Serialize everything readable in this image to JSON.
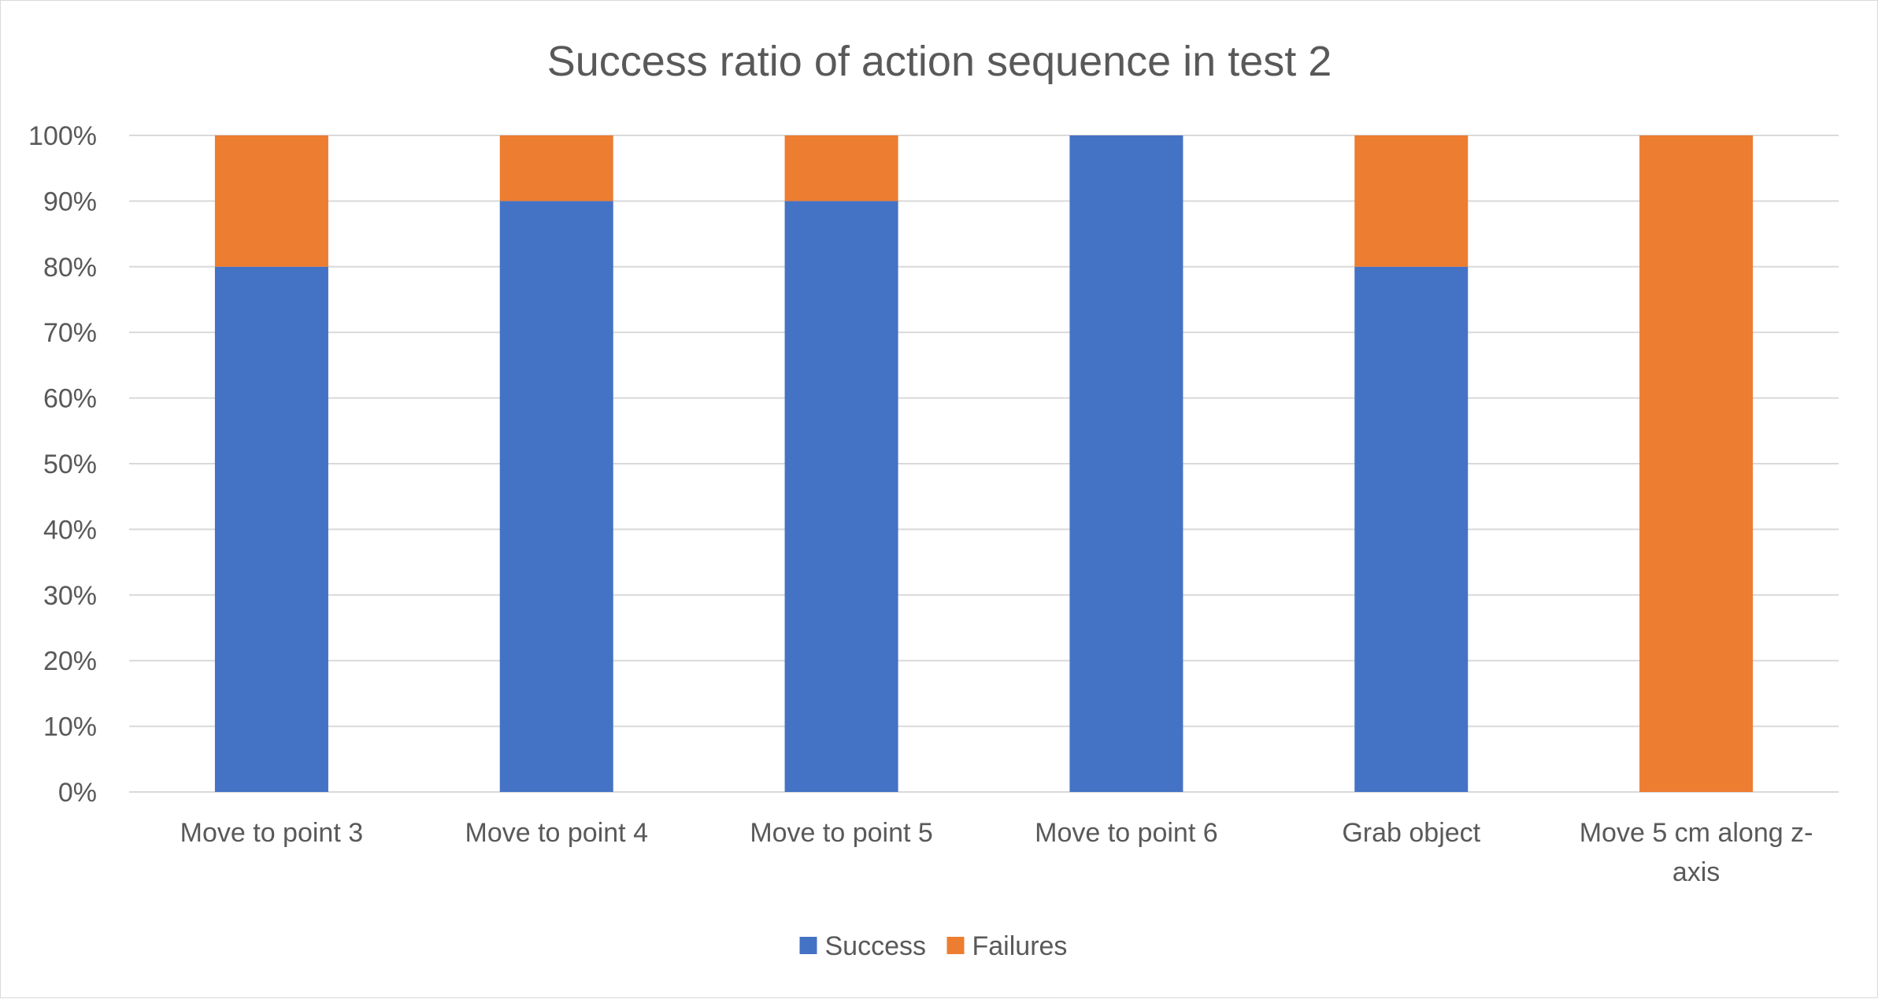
{
  "chart_data": {
    "type": "bar",
    "stacked": true,
    "normalized": true,
    "title": "Success ratio of action sequence in test 2",
    "xlabel": "",
    "ylabel": "",
    "categories": [
      [
        "Move to point 3"
      ],
      [
        "Move to point 4"
      ],
      [
        "Move to point 5"
      ],
      [
        "Move to point 6"
      ],
      [
        "Grab object"
      ],
      [
        "Move 5 cm along z-",
        "axis"
      ]
    ],
    "series": [
      {
        "name": "Success",
        "color": "#4472C4",
        "values": [
          80,
          90,
          90,
          100,
          80,
          0
        ]
      },
      {
        "name": "Failures",
        "color": "#ED7D31",
        "values": [
          20,
          10,
          10,
          0,
          20,
          100
        ]
      }
    ],
    "ylim": [
      0,
      100
    ],
    "yticks": [
      "0%",
      "10%",
      "20%",
      "30%",
      "40%",
      "50%",
      "60%",
      "70%",
      "80%",
      "90%",
      "100%"
    ],
    "grid": true,
    "gridColor": "#d9d9d9",
    "legend_position": "bottom"
  }
}
